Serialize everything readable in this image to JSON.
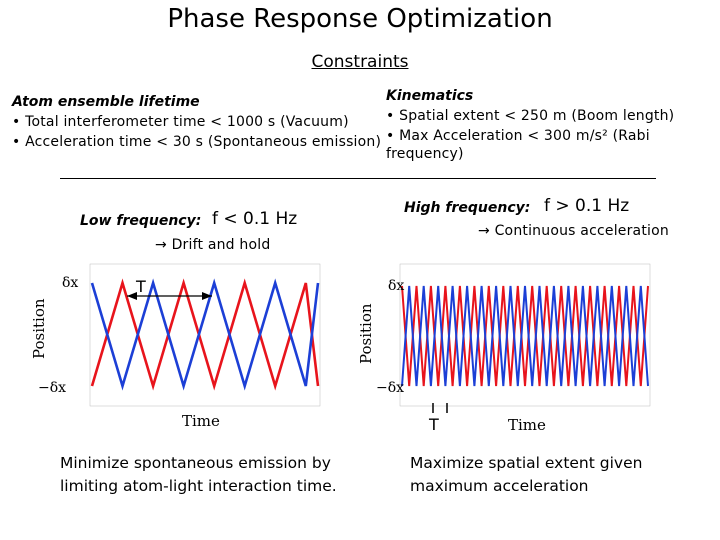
{
  "title": "Phase Response Optimization",
  "subtitle": "Constraints",
  "left_block": {
    "heading": "Atom ensemble lifetime",
    "items": [
      "• Total interferometer time < 1000 s (Vacuum)",
      "• Acceleration time < 30 s (Spontaneous emission)"
    ]
  },
  "right_block": {
    "heading": "Kinematics",
    "items": [
      "• Spatial extent < 250 m (Boom length)",
      "• Max Acceleration < 300 m/s² (Rabi",
      "frequency)"
    ]
  },
  "low_freq": {
    "label": "Low frequency:",
    "condition": "f < 0.1 Hz",
    "result": "→ Drift and hold",
    "plot": {
      "y_top_label": "δx",
      "y_bottom_label": "−δx",
      "y_axis_label": "Position",
      "x_axis_label": "Time",
      "period_label": "T",
      "cycles": 3.7
    },
    "caption": "Minimize spontaneous emission by limiting atom-light interaction time."
  },
  "high_freq": {
    "label": "High frequency:",
    "condition": "f > 0.1 Hz",
    "result": "→ Continuous acceleration",
    "plot": {
      "y_top_label": "δx",
      "y_bottom_label": "−δx",
      "y_axis_label": "Position",
      "x_axis_label": "Time",
      "period_label": "T",
      "cycles": 17
    },
    "caption": "Maximize spatial extent given maximum acceleration"
  },
  "colors": {
    "series_a": "#e8141c",
    "series_b": "#1c3fd6"
  }
}
